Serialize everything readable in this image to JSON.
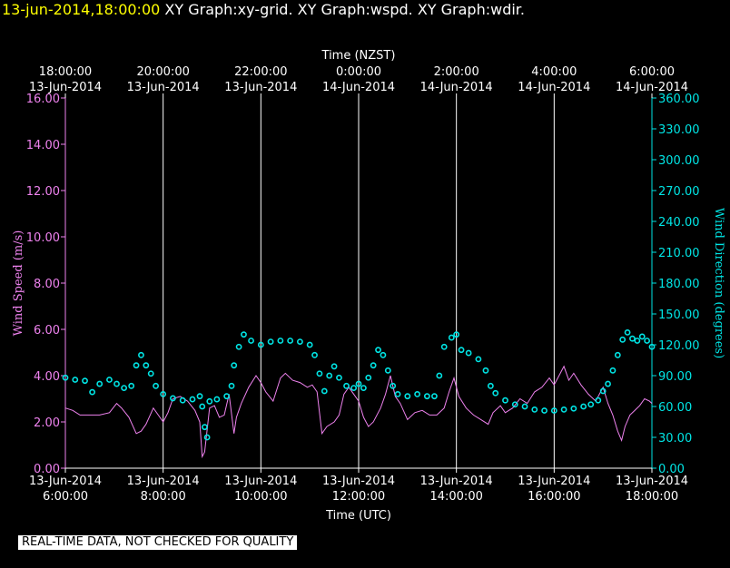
{
  "header": {
    "timestamp": "13-jun-2014,18:00:00",
    "titles": "XY Graph:xy-grid.  XY Graph:wspd.  XY Graph:wdir."
  },
  "notice": "REAL-TIME DATA, NOT CHECKED FOR QUALITY",
  "colors": {
    "speed": "#ee82ee",
    "direction": "#00e5e5",
    "grid": "#ffffff",
    "text": "#ffffff",
    "background": "#000000"
  },
  "chart_data": {
    "type": "scatter",
    "top_axis_title": "Time (NZST)",
    "xlabel": "Time (UTC)",
    "ylabel_left": "Wind Speed (m/s)",
    "ylabel_right": "Wind Direction (degrees)",
    "x_range_hours_utc": [
      6.0,
      18.0
    ],
    "left_ylim": [
      0,
      16
    ],
    "right_ylim": [
      0,
      360
    ],
    "grid": "vertical",
    "bottom_ticks": [
      {
        "hour": 6,
        "date": "13-Jun-2014",
        "time": "6:00:00"
      },
      {
        "hour": 8,
        "date": "13-Jun-2014",
        "time": "8:00:00"
      },
      {
        "hour": 10,
        "date": "13-Jun-2014",
        "time": "10:00:00"
      },
      {
        "hour": 12,
        "date": "13-Jun-2014",
        "time": "12:00:00"
      },
      {
        "hour": 14,
        "date": "13-Jun-2014",
        "time": "14:00:00"
      },
      {
        "hour": 16,
        "date": "13-Jun-2014",
        "time": "16:00:00"
      },
      {
        "hour": 18,
        "date": "13-Jun-2014",
        "time": "18:00:00"
      }
    ],
    "top_ticks": [
      {
        "hour": 6,
        "time": "18:00:00",
        "date": "13-Jun-2014"
      },
      {
        "hour": 8,
        "time": "20:00:00",
        "date": "13-Jun-2014"
      },
      {
        "hour": 10,
        "time": "22:00:00",
        "date": "13-Jun-2014"
      },
      {
        "hour": 12,
        "time": "0:00:00",
        "date": "14-Jun-2014"
      },
      {
        "hour": 14,
        "time": "2:00:00",
        "date": "14-Jun-2014"
      },
      {
        "hour": 16,
        "time": "4:00:00",
        "date": "14-Jun-2014"
      },
      {
        "hour": 18,
        "time": "6:00:00",
        "date": "14-Jun-2014"
      }
    ],
    "left_ticks": [
      "0.00",
      "2.00",
      "4.00",
      "6.00",
      "8.00",
      "10.00",
      "12.00",
      "14.00",
      "16.00"
    ],
    "right_ticks": [
      "0.00",
      "30.00",
      "60.00",
      "90.00",
      "120.00",
      "150.00",
      "180.00",
      "210.00",
      "240.00",
      "270.00",
      "300.00",
      "330.00",
      "360.00"
    ],
    "series": [
      {
        "name": "wspd",
        "style": "line",
        "axis": "left",
        "points": [
          [
            6.0,
            2.6
          ],
          [
            6.15,
            2.5
          ],
          [
            6.3,
            2.3
          ],
          [
            6.5,
            2.3
          ],
          [
            6.7,
            2.3
          ],
          [
            6.9,
            2.4
          ],
          [
            7.05,
            2.8
          ],
          [
            7.15,
            2.6
          ],
          [
            7.3,
            2.2
          ],
          [
            7.45,
            1.5
          ],
          [
            7.55,
            1.6
          ],
          [
            7.65,
            1.9
          ],
          [
            7.8,
            2.6
          ],
          [
            7.9,
            2.3
          ],
          [
            8.0,
            2.0
          ],
          [
            8.1,
            2.4
          ],
          [
            8.2,
            3.0
          ],
          [
            8.35,
            3.1
          ],
          [
            8.5,
            2.9
          ],
          [
            8.65,
            2.5
          ],
          [
            8.75,
            2.0
          ],
          [
            8.8,
            0.5
          ],
          [
            8.85,
            0.7
          ],
          [
            8.95,
            2.6
          ],
          [
            9.05,
            2.7
          ],
          [
            9.15,
            2.2
          ],
          [
            9.25,
            2.3
          ],
          [
            9.35,
            3.2
          ],
          [
            9.45,
            1.5
          ],
          [
            9.5,
            2.2
          ],
          [
            9.6,
            2.8
          ],
          [
            9.75,
            3.5
          ],
          [
            9.9,
            4.0
          ],
          [
            10.0,
            3.7
          ],
          [
            10.1,
            3.3
          ],
          [
            10.25,
            2.9
          ],
          [
            10.4,
            3.9
          ],
          [
            10.5,
            4.1
          ],
          [
            10.65,
            3.8
          ],
          [
            10.8,
            3.7
          ],
          [
            10.95,
            3.5
          ],
          [
            11.05,
            3.6
          ],
          [
            11.15,
            3.3
          ],
          [
            11.25,
            1.5
          ],
          [
            11.35,
            1.8
          ],
          [
            11.5,
            2.0
          ],
          [
            11.6,
            2.3
          ],
          [
            11.7,
            3.2
          ],
          [
            11.8,
            3.5
          ],
          [
            11.9,
            3.2
          ],
          [
            12.0,
            2.9
          ],
          [
            12.1,
            2.2
          ],
          [
            12.2,
            1.8
          ],
          [
            12.3,
            2.0
          ],
          [
            12.45,
            2.6
          ],
          [
            12.55,
            3.2
          ],
          [
            12.65,
            4.0
          ],
          [
            12.75,
            3.1
          ],
          [
            12.85,
            2.8
          ],
          [
            13.0,
            2.1
          ],
          [
            13.15,
            2.4
          ],
          [
            13.3,
            2.5
          ],
          [
            13.45,
            2.3
          ],
          [
            13.6,
            2.3
          ],
          [
            13.75,
            2.6
          ],
          [
            13.85,
            3.3
          ],
          [
            13.95,
            3.9
          ],
          [
            14.05,
            3.1
          ],
          [
            14.2,
            2.6
          ],
          [
            14.35,
            2.3
          ],
          [
            14.5,
            2.1
          ],
          [
            14.65,
            1.9
          ],
          [
            14.75,
            2.4
          ],
          [
            14.9,
            2.7
          ],
          [
            15.0,
            2.4
          ],
          [
            15.15,
            2.6
          ],
          [
            15.3,
            3.0
          ],
          [
            15.45,
            2.8
          ],
          [
            15.6,
            3.3
          ],
          [
            15.75,
            3.5
          ],
          [
            15.9,
            3.9
          ],
          [
            16.0,
            3.6
          ],
          [
            16.1,
            4.0
          ],
          [
            16.2,
            4.4
          ],
          [
            16.3,
            3.8
          ],
          [
            16.4,
            4.1
          ],
          [
            16.55,
            3.6
          ],
          [
            16.7,
            3.2
          ],
          [
            16.85,
            2.9
          ],
          [
            17.0,
            3.5
          ],
          [
            17.1,
            2.8
          ],
          [
            17.2,
            2.3
          ],
          [
            17.3,
            1.6
          ],
          [
            17.38,
            1.2
          ],
          [
            17.45,
            1.8
          ],
          [
            17.55,
            2.3
          ],
          [
            17.65,
            2.5
          ],
          [
            17.75,
            2.7
          ],
          [
            17.85,
            3.0
          ],
          [
            17.95,
            2.9
          ],
          [
            18.0,
            2.8
          ]
        ]
      },
      {
        "name": "wdir",
        "style": "points",
        "axis": "right",
        "points": [
          [
            6.0,
            88
          ],
          [
            6.2,
            86
          ],
          [
            6.4,
            85
          ],
          [
            6.55,
            74
          ],
          [
            6.7,
            82
          ],
          [
            6.9,
            86
          ],
          [
            7.05,
            82
          ],
          [
            7.2,
            78
          ],
          [
            7.35,
            80
          ],
          [
            7.45,
            100
          ],
          [
            7.55,
            110
          ],
          [
            7.65,
            100
          ],
          [
            7.75,
            92
          ],
          [
            7.85,
            80
          ],
          [
            8.0,
            72
          ],
          [
            8.2,
            68
          ],
          [
            8.4,
            66
          ],
          [
            8.6,
            67
          ],
          [
            8.75,
            70
          ],
          [
            8.8,
            60
          ],
          [
            8.85,
            40
          ],
          [
            8.9,
            30
          ],
          [
            8.95,
            65
          ],
          [
            9.1,
            67
          ],
          [
            9.3,
            70
          ],
          [
            9.4,
            80
          ],
          [
            9.45,
            100
          ],
          [
            9.55,
            118
          ],
          [
            9.65,
            130
          ],
          [
            9.8,
            124
          ],
          [
            10.0,
            120
          ],
          [
            10.2,
            123
          ],
          [
            10.4,
            124
          ],
          [
            10.6,
            124
          ],
          [
            10.8,
            123
          ],
          [
            11.0,
            120
          ],
          [
            11.1,
            110
          ],
          [
            11.2,
            92
          ],
          [
            11.3,
            75
          ],
          [
            11.4,
            90
          ],
          [
            11.5,
            99
          ],
          [
            11.6,
            88
          ],
          [
            11.75,
            80
          ],
          [
            11.9,
            78
          ],
          [
            12.0,
            82
          ],
          [
            12.1,
            78
          ],
          [
            12.2,
            88
          ],
          [
            12.3,
            100
          ],
          [
            12.4,
            115
          ],
          [
            12.5,
            110
          ],
          [
            12.6,
            95
          ],
          [
            12.7,
            80
          ],
          [
            12.8,
            72
          ],
          [
            13.0,
            70
          ],
          [
            13.2,
            72
          ],
          [
            13.4,
            70
          ],
          [
            13.55,
            70
          ],
          [
            13.65,
            90
          ],
          [
            13.75,
            118
          ],
          [
            13.9,
            127
          ],
          [
            14.0,
            130
          ],
          [
            14.1,
            115
          ],
          [
            14.25,
            112
          ],
          [
            14.45,
            106
          ],
          [
            14.6,
            95
          ],
          [
            14.7,
            80
          ],
          [
            14.8,
            73
          ],
          [
            15.0,
            66
          ],
          [
            15.2,
            62
          ],
          [
            15.4,
            60
          ],
          [
            15.6,
            57
          ],
          [
            15.8,
            56
          ],
          [
            16.0,
            56
          ],
          [
            16.2,
            57
          ],
          [
            16.4,
            58
          ],
          [
            16.6,
            60
          ],
          [
            16.75,
            62
          ],
          [
            16.9,
            66
          ],
          [
            17.0,
            75
          ],
          [
            17.1,
            82
          ],
          [
            17.2,
            95
          ],
          [
            17.3,
            110
          ],
          [
            17.4,
            125
          ],
          [
            17.5,
            132
          ],
          [
            17.6,
            126
          ],
          [
            17.7,
            124
          ],
          [
            17.8,
            128
          ],
          [
            17.9,
            124
          ],
          [
            18.0,
            118
          ]
        ]
      }
    ]
  }
}
